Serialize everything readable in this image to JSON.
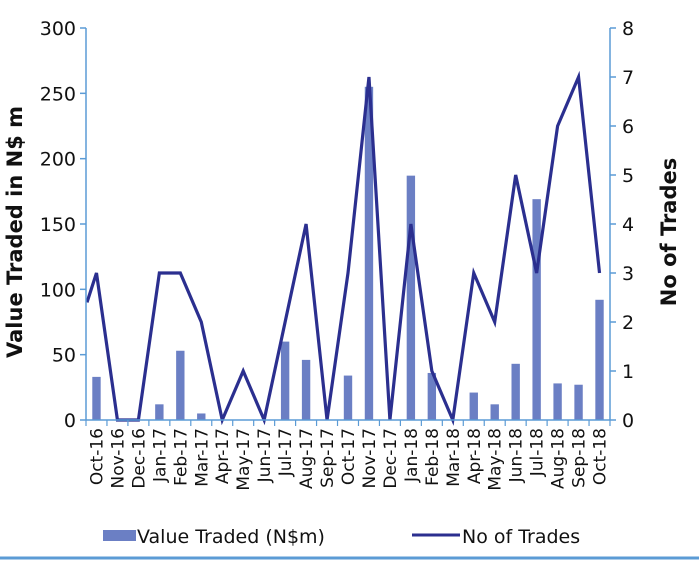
{
  "chart_data": {
    "type": "bar",
    "categories": [
      "Oct-16",
      "Nov-16",
      "Dec-16",
      "Jan-17",
      "Feb-17",
      "Mar-17",
      "Apr-17",
      "May-17",
      "Jun-17",
      "Jul-17",
      "Aug-17",
      "Sep-17",
      "Oct-17",
      "Nov-17",
      "Dec-17",
      "Jan-18",
      "Feb-18",
      "Mar-18",
      "Apr-18",
      "May-18",
      "Jun-18",
      "Jul-18",
      "Aug-18",
      "Sep-18",
      "Oct-18"
    ],
    "series": [
      {
        "name": "Value Traded (N$m)",
        "type": "bar",
        "axis": "left",
        "color": "#6b7fc4",
        "values": [
          33,
          0,
          0,
          12,
          53,
          5,
          0,
          0,
          0,
          60,
          46,
          0,
          34,
          255,
          0,
          187,
          36,
          0,
          21,
          12,
          43,
          169,
          28,
          27,
          92
        ]
      },
      {
        "name": "No of Trades",
        "type": "line",
        "axis": "right",
        "color": "#2b2f8f",
        "values": [
          3,
          0,
          0,
          3,
          3,
          2,
          0,
          1,
          0,
          2,
          4,
          0,
          3,
          7,
          0,
          4,
          1,
          0,
          3,
          2,
          5,
          3,
          6,
          7,
          3
        ]
      }
    ],
    "ylabel": "Value Traded in N$ m",
    "y2label": "No of Trades",
    "ylim": [
      0,
      300
    ],
    "y2lim": [
      0,
      8
    ],
    "yticks": [
      "0",
      "50",
      "100",
      "150",
      "200",
      "250",
      "300"
    ],
    "y2ticks": [
      "0",
      "1",
      "2",
      "3",
      "4",
      "5",
      "6",
      "7",
      "8"
    ],
    "legend_position": "bottom",
    "grid": false
  },
  "colors": {
    "axis": "#5b9bd5",
    "bottom_rule": "#5b9bd5"
  }
}
